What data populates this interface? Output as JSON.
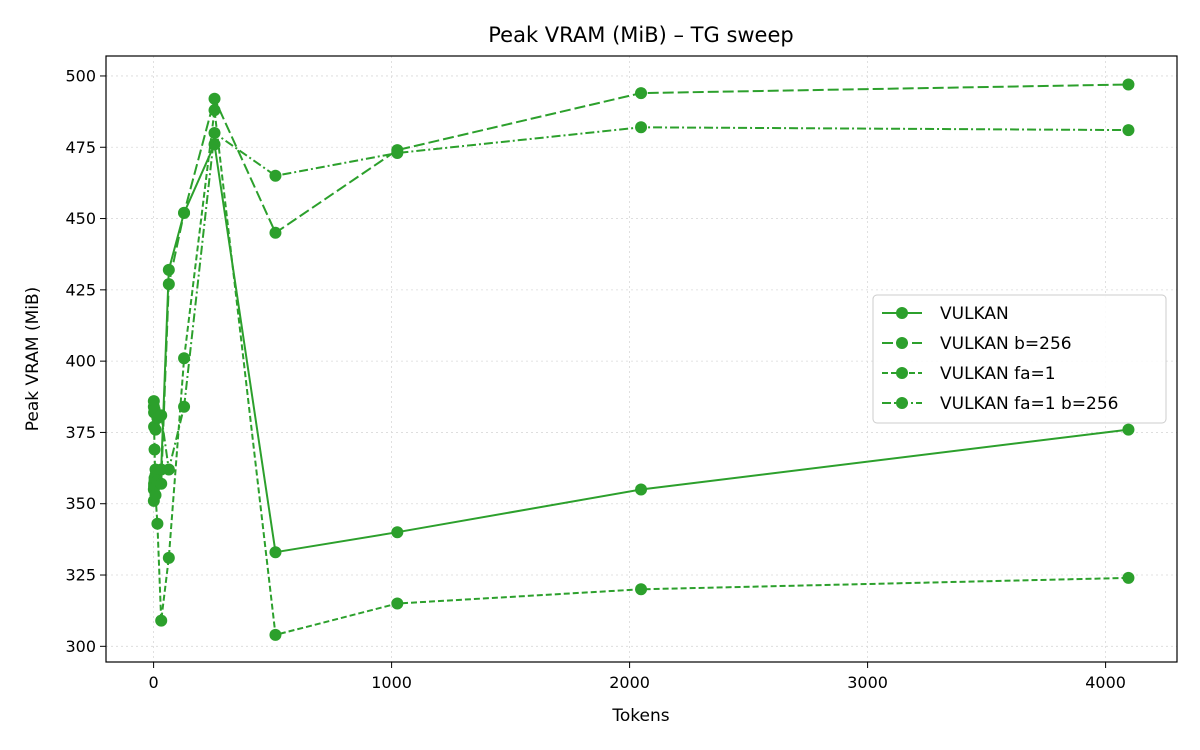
{
  "chart_data": {
    "type": "line",
    "title": "Peak VRAM (MiB) – TG sweep",
    "xlabel": "Tokens",
    "ylabel": "Peak VRAM (MiB)",
    "xlim": [
      -200,
      4300
    ],
    "ylim": [
      294.5,
      507
    ],
    "xticks": [
      0,
      1000,
      2000,
      3000,
      4000
    ],
    "yticks": [
      300,
      325,
      350,
      375,
      400,
      425,
      450,
      475,
      500
    ],
    "grid": true,
    "legend_position": "center-right",
    "color": "#2ca02c",
    "series": [
      {
        "name": "VULKAN",
        "dash": "solid",
        "x": [
          1,
          2,
          4,
          8,
          16,
          32,
          64,
          128,
          256,
          512,
          1024,
          2048,
          4096
        ],
        "y": [
          355,
          357,
          358,
          360,
          361,
          362,
          432,
          452,
          476,
          333,
          340,
          355,
          376
        ]
      },
      {
        "name": "VULKAN b=256",
        "dash": "dashed",
        "x": [
          1,
          2,
          4,
          8,
          16,
          32,
          64,
          128,
          256,
          512,
          1024,
          2048,
          4096
        ],
        "y": [
          351,
          356,
          359,
          362,
          358,
          357,
          427,
          452,
          492,
          445,
          474,
          494,
          497
        ]
      },
      {
        "name": "VULKAN fa=1",
        "dash": "short-dashed",
        "x": [
          1,
          2,
          4,
          8,
          16,
          32,
          64,
          128,
          256,
          512,
          1024,
          2048,
          4096
        ],
        "y": [
          384,
          377,
          369,
          353,
          343,
          309,
          331,
          401,
          488,
          304,
          315,
          320,
          324
        ]
      },
      {
        "name": "VULKAN fa=1 b=256",
        "dash": "dash-dot",
        "x": [
          1,
          2,
          4,
          8,
          16,
          32,
          64,
          128,
          256,
          512,
          1024,
          2048,
          4096
        ],
        "y": [
          386,
          382,
          383,
          376,
          380,
          381,
          362,
          384,
          480,
          465,
          473,
          482,
          481
        ]
      }
    ]
  }
}
